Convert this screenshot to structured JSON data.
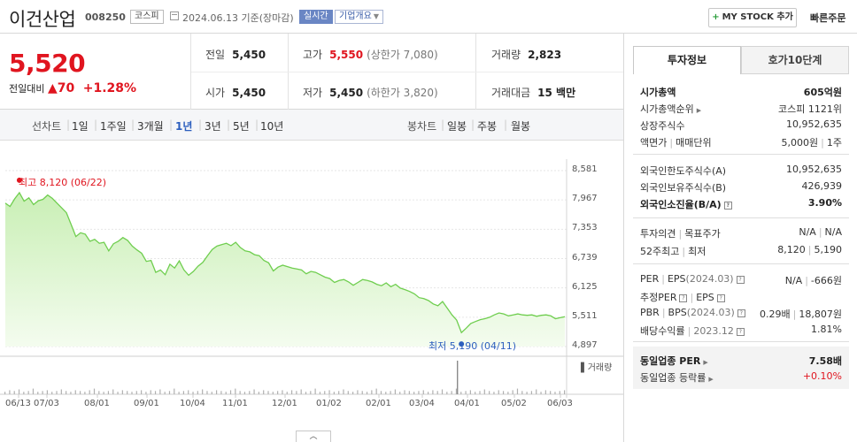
{
  "header": {
    "name": "이건산업",
    "code": "008250",
    "market": "코스피",
    "date": "2024.06.13  기준(장마감)",
    "live_badge": "실시간",
    "corp_badge": "기업개요",
    "mystock": "MY STOCK 추가",
    "quick_order": "빠른주문"
  },
  "quote": {
    "price": "5,520",
    "change_label": "전일대비",
    "change_value": "70",
    "change_pct": "+1.28%",
    "prev_label": "전일",
    "prev_value": "5,450",
    "high_label": "고가",
    "high_value": "5,550",
    "upper_limit": "(상한가 7,080)",
    "volume_label": "거래량",
    "volume_value": "2,823",
    "open_label": "시가",
    "open_value": "5,450",
    "low_label": "저가",
    "low_value": "5,450",
    "lower_limit": "(하한가 3,820)",
    "amount_label": "거래대금",
    "amount_value": "15 백만"
  },
  "periods": {
    "line_label": "선차트",
    "items": [
      "1일",
      "1주일",
      "3개월",
      "1년",
      "3년",
      "5년",
      "10년"
    ],
    "active": "1년",
    "candle_label": "봉차트",
    "candle_items": [
      "일봉",
      "주봉",
      "월봉"
    ]
  },
  "chart_data": {
    "type": "area",
    "title": "",
    "y_ticks": [
      "8,581",
      "7,967",
      "7,353",
      "6,739",
      "6,125",
      "5,511",
      "4,897"
    ],
    "ylim": [
      4897,
      8581
    ],
    "x_ticks": [
      "06/13",
      "07/03",
      "08/01",
      "09/01",
      "10/04",
      "11/01",
      "12/01",
      "01/02",
      "02/01",
      "03/04",
      "04/01",
      "05/02",
      "06/03"
    ],
    "high_label": "최고 8,120 (06/22)",
    "low_label": "최저 5,190 (04/11)",
    "volume_label": "거래량",
    "color": "#6fce4f",
    "grid": true,
    "values": [
      7900,
      7830,
      7990,
      8120,
      7940,
      8010,
      7870,
      7950,
      7980,
      8070,
      8000,
      7900,
      7800,
      7700,
      7450,
      7200,
      7280,
      7250,
      7100,
      7140,
      7060,
      7080,
      6900,
      7050,
      7100,
      7180,
      7120,
      7000,
      6920,
      6850,
      6680,
      6700,
      6450,
      6500,
      6400,
      6620,
      6540,
      6690,
      6500,
      6390,
      6470,
      6580,
      6660,
      6800,
      6930,
      7000,
      7030,
      7060,
      7010,
      7080,
      6970,
      6900,
      6880,
      6820,
      6800,
      6700,
      6650,
      6480,
      6560,
      6600,
      6570,
      6540,
      6520,
      6500,
      6420,
      6470,
      6450,
      6400,
      6350,
      6320,
      6240,
      6280,
      6300,
      6250,
      6180,
      6240,
      6300,
      6280,
      6250,
      6200,
      6170,
      6230,
      6150,
      6200,
      6120,
      6090,
      6050,
      6000,
      5920,
      5900,
      5860,
      5790,
      5750,
      5840,
      5700,
      5560,
      5450,
      5190,
      5280,
      5380,
      5420,
      5460,
      5480,
      5510,
      5560,
      5600,
      5580,
      5540,
      5560,
      5580,
      5560,
      5550,
      5560,
      5530,
      5550,
      5560,
      5540,
      5480,
      5500,
      5520
    ]
  },
  "panel": {
    "tab_active": "투자정보",
    "tab_inactive": "호가10단계",
    "market_cap_label": "시가총액",
    "market_cap": "605억원",
    "cap_rank_label": "시가총액순위",
    "cap_rank": "코스피 1121위",
    "shares_label": "상장주식수",
    "shares": "10,952,635",
    "face_label": "액면가",
    "unit_label": "매매단위",
    "face_value": "5,000원",
    "unit_value": "1주",
    "foreign_limit_label": "외국인한도주식수(A)",
    "foreign_limit": "10,952,635",
    "foreign_hold_label": "외국인보유주식수(B)",
    "foreign_hold": "426,939",
    "foreign_ratio_label": "외국인소진율(B/A)",
    "foreign_ratio": "3.90%",
    "opinion_label": "투자의견",
    "target_label": "목표주가",
    "opinion": "N/A",
    "target": "N/A",
    "high52_label": "52주최고",
    "low52_label": "최저",
    "high52": "8,120",
    "low52": "5,190",
    "per_label": "PER",
    "eps_label": "EPS",
    "eps_period": "(2024.03)",
    "per": "N/A",
    "eps": "-666원",
    "est_per_label": "추정PER",
    "est_eps_label": "EPS",
    "pbr_label": "PBR",
    "bps_label": "BPS",
    "bps_period": "(2024.03)",
    "pbr": "0.29배",
    "bps": "18,807원",
    "dividend_label": "배당수익률",
    "dividend_period": "2023.12",
    "dividend": "1.81%",
    "industry_per_label": "동일업종 PER",
    "industry_per": "7.58배",
    "industry_rate_label": "동일업종 등락률",
    "industry_rate": "+0.10%"
  }
}
